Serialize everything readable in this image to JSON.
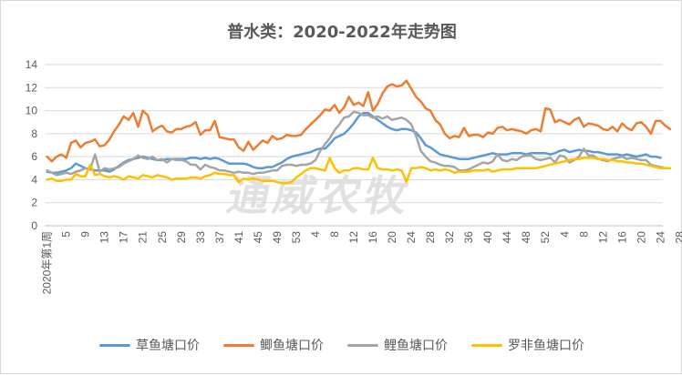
{
  "chart_data": {
    "type": "line",
    "title": "普水类：2020-2022年走势图",
    "ylim": [
      0,
      14
    ],
    "yticks": [
      0,
      2,
      4,
      6,
      8,
      10,
      12,
      14
    ],
    "x_start_label": "2020年第1周",
    "x_tick_labels": [
      "5",
      "9",
      "13",
      "17",
      "21",
      "25",
      "29",
      "33",
      "37",
      "41",
      "45",
      "49",
      "53",
      "4",
      "8",
      "12",
      "16",
      "20",
      "24",
      "28",
      "32",
      "36",
      "40",
      "44",
      "48",
      "52",
      "4",
      "8",
      "12",
      "16",
      "20",
      "24",
      "28"
    ],
    "watermark": "通威农牧",
    "series": [
      {
        "name": "草鱼塘口价",
        "color": "#5b9bd5",
        "values": [
          4.7,
          4.6,
          4.6,
          4.7,
          4.8,
          5.0,
          5.4,
          5.2,
          5.0,
          4.9,
          4.8,
          4.8,
          4.8,
          4.7,
          4.9,
          5.2,
          5.5,
          5.7,
          5.8,
          5.9,
          6.0,
          5.9,
          5.8,
          5.7,
          5.7,
          5.8,
          5.8,
          5.8,
          5.8,
          5.8,
          5.9,
          5.9,
          5.8,
          5.9,
          5.8,
          5.9,
          5.8,
          5.6,
          5.4,
          5.4,
          5.4,
          5.4,
          5.3,
          5.1,
          5.0,
          5.0,
          5.1,
          5.1,
          5.3,
          5.5,
          5.8,
          6.0,
          6.1,
          6.2,
          6.3,
          6.4,
          6.6,
          6.7,
          6.7,
          7.1,
          7.6,
          7.8,
          8.0,
          8.4,
          8.9,
          9.5,
          9.8,
          9.8,
          9.5,
          9.2,
          8.9,
          8.6,
          8.4,
          8.3,
          8.4,
          8.4,
          8.3,
          8.1,
          7.6,
          7.0,
          6.8,
          6.5,
          6.2,
          6.1,
          6.0,
          5.9,
          5.8,
          5.8,
          5.8,
          5.9,
          6.0,
          6.1,
          6.2,
          6.3,
          6.2,
          6.2,
          6.2,
          6.3,
          6.3,
          6.3,
          6.2,
          6.3,
          6.3,
          6.3,
          6.3,
          6.2,
          6.3,
          6.5,
          6.6,
          6.4,
          6.5,
          6.6,
          6.5,
          6.5,
          6.4,
          6.4,
          6.3,
          6.2,
          6.2,
          6.2,
          6.1,
          6.2,
          6.1,
          6.0,
          6.1,
          6.2,
          6.0,
          6.0,
          5.9
        ]
      },
      {
        "name": "鲫鱼塘口价",
        "color": "#ed7d31",
        "values": [
          6.0,
          5.6,
          6.0,
          6.2,
          5.9,
          7.2,
          7.4,
          6.8,
          7.2,
          7.3,
          7.5,
          6.9,
          7.0,
          7.5,
          8.2,
          8.8,
          9.5,
          9.2,
          9.8,
          8.6,
          10.0,
          9.6,
          8.2,
          8.5,
          8.7,
          8.2,
          8.1,
          8.4,
          8.4,
          8.6,
          8.7,
          9.0,
          7.9,
          8.3,
          8.3,
          9.1,
          7.7,
          7.6,
          7.5,
          7.5,
          6.8,
          6.5,
          7.3,
          6.6,
          7.0,
          7.4,
          7.2,
          7.8,
          7.5,
          7.6,
          7.9,
          7.8,
          7.8,
          7.9,
          8.4,
          8.8,
          9.2,
          9.6,
          10.1,
          10.0,
          10.5,
          9.8,
          10.3,
          11.2,
          10.5,
          10.7,
          10.4,
          11.6,
          10.0,
          10.6,
          11.5,
          12.1,
          12.3,
          12.1,
          12.2,
          12.6,
          11.9,
          11.2,
          10.8,
          10.2,
          10.0,
          9.2,
          8.8,
          8.0,
          7.6,
          7.8,
          7.7,
          8.5,
          7.8,
          7.9,
          7.9,
          7.7,
          8.1,
          8.0,
          8.5,
          8.6,
          8.3,
          8.4,
          8.3,
          8.2,
          8.0,
          8.3,
          8.4,
          8.2,
          10.2,
          10.1,
          9.0,
          9.2,
          9.0,
          8.8,
          9.2,
          9.4,
          8.6,
          8.9,
          8.8,
          8.7,
          8.4,
          8.3,
          8.6,
          8.2,
          8.9,
          8.5,
          8.3,
          8.9,
          9.0,
          8.6,
          8.0,
          9.1,
          9.1,
          8.7,
          8.4
        ]
      },
      {
        "name": "鲤鱼塘口价",
        "color": "#a5a5a5",
        "values": [
          4.8,
          4.6,
          4.4,
          4.5,
          4.6,
          4.5,
          4.7,
          4.8,
          5.0,
          4.9,
          6.2,
          4.7,
          5.0,
          4.9,
          5.0,
          5.1,
          5.4,
          5.6,
          5.8,
          6.1,
          5.9,
          5.8,
          6.0,
          5.7,
          5.8,
          5.5,
          5.8,
          5.7,
          5.7,
          5.6,
          5.3,
          5.3,
          4.9,
          5.3,
          5.1,
          5.0,
          4.8,
          4.8,
          4.7,
          4.6,
          4.7,
          4.6,
          4.6,
          4.5,
          4.6,
          4.6,
          4.7,
          4.8,
          4.8,
          5.2,
          5.3,
          5.3,
          5.2,
          5.3,
          5.3,
          5.4,
          5.7,
          6.5,
          7.1,
          7.6,
          8.3,
          8.8,
          9.4,
          9.5,
          9.9,
          9.8,
          9.6,
          9.6,
          9.4,
          9.5,
          9.3,
          9.5,
          9.2,
          9.3,
          9.4,
          9.2,
          8.8,
          7.8,
          6.5,
          6.0,
          5.6,
          5.5,
          5.3,
          5.2,
          5.2,
          5.1,
          4.8,
          4.8,
          4.9,
          5.1,
          5.3,
          5.5,
          5.4,
          5.6,
          6.2,
          5.7,
          5.6,
          5.8,
          5.7,
          6.0,
          6.1,
          6.1,
          5.8,
          5.7,
          5.8,
          5.9,
          5.5,
          6.1,
          6.0,
          5.5,
          5.7,
          6.0,
          6.7,
          6.1,
          6.1,
          5.8,
          5.7,
          5.6,
          5.8,
          5.9,
          6.0,
          5.8,
          5.9,
          5.8,
          5.7,
          5.7,
          5.3,
          5.2,
          5.1,
          5.0,
          5.0
        ]
      },
      {
        "name": "罗非鱼塘口价",
        "color": "#ffc000",
        "values": [
          4.0,
          4.1,
          3.9,
          3.9,
          4.0,
          4.0,
          4.5,
          4.3,
          4.3,
          5.3,
          4.4,
          4.5,
          4.3,
          4.2,
          4.3,
          4.2,
          4.0,
          4.3,
          4.2,
          4.1,
          4.4,
          4.3,
          4.2,
          4.4,
          4.3,
          4.2,
          4.0,
          4.1,
          4.1,
          4.1,
          4.2,
          4.2,
          4.1,
          4.3,
          4.4,
          4.6,
          4.5,
          4.5,
          4.4,
          4.4,
          3.8,
          4.1,
          4.0,
          4.1,
          4.0,
          3.9,
          3.9,
          3.9,
          3.8,
          3.7,
          3.7,
          3.8,
          4.2,
          4.5,
          4.8,
          5.0,
          5.0,
          4.9,
          4.8,
          5.9,
          5.0,
          4.6,
          4.8,
          4.8,
          5.0,
          5.0,
          4.9,
          4.9,
          5.9,
          5.0,
          4.9,
          4.9,
          4.8,
          4.9,
          4.8,
          3.8,
          5.0,
          5.0,
          5.1,
          5.0,
          4.8,
          4.9,
          4.8,
          4.9,
          4.8,
          4.6,
          4.7,
          4.7,
          4.7,
          4.8,
          4.8,
          4.8,
          4.9,
          4.7,
          4.8,
          4.9,
          4.9,
          4.9,
          5.0,
          5.0,
          5.0,
          5.0,
          5.0,
          5.1,
          5.2,
          5.3,
          5.4,
          5.5,
          5.6,
          5.7,
          5.8,
          5.8,
          5.9,
          5.9,
          5.9,
          5.8,
          5.8,
          5.7,
          5.7,
          5.6,
          5.6,
          5.5,
          5.5,
          5.4,
          5.4,
          5.3,
          5.2,
          5.1,
          5.0,
          5.0,
          5.0
        ]
      }
    ]
  }
}
